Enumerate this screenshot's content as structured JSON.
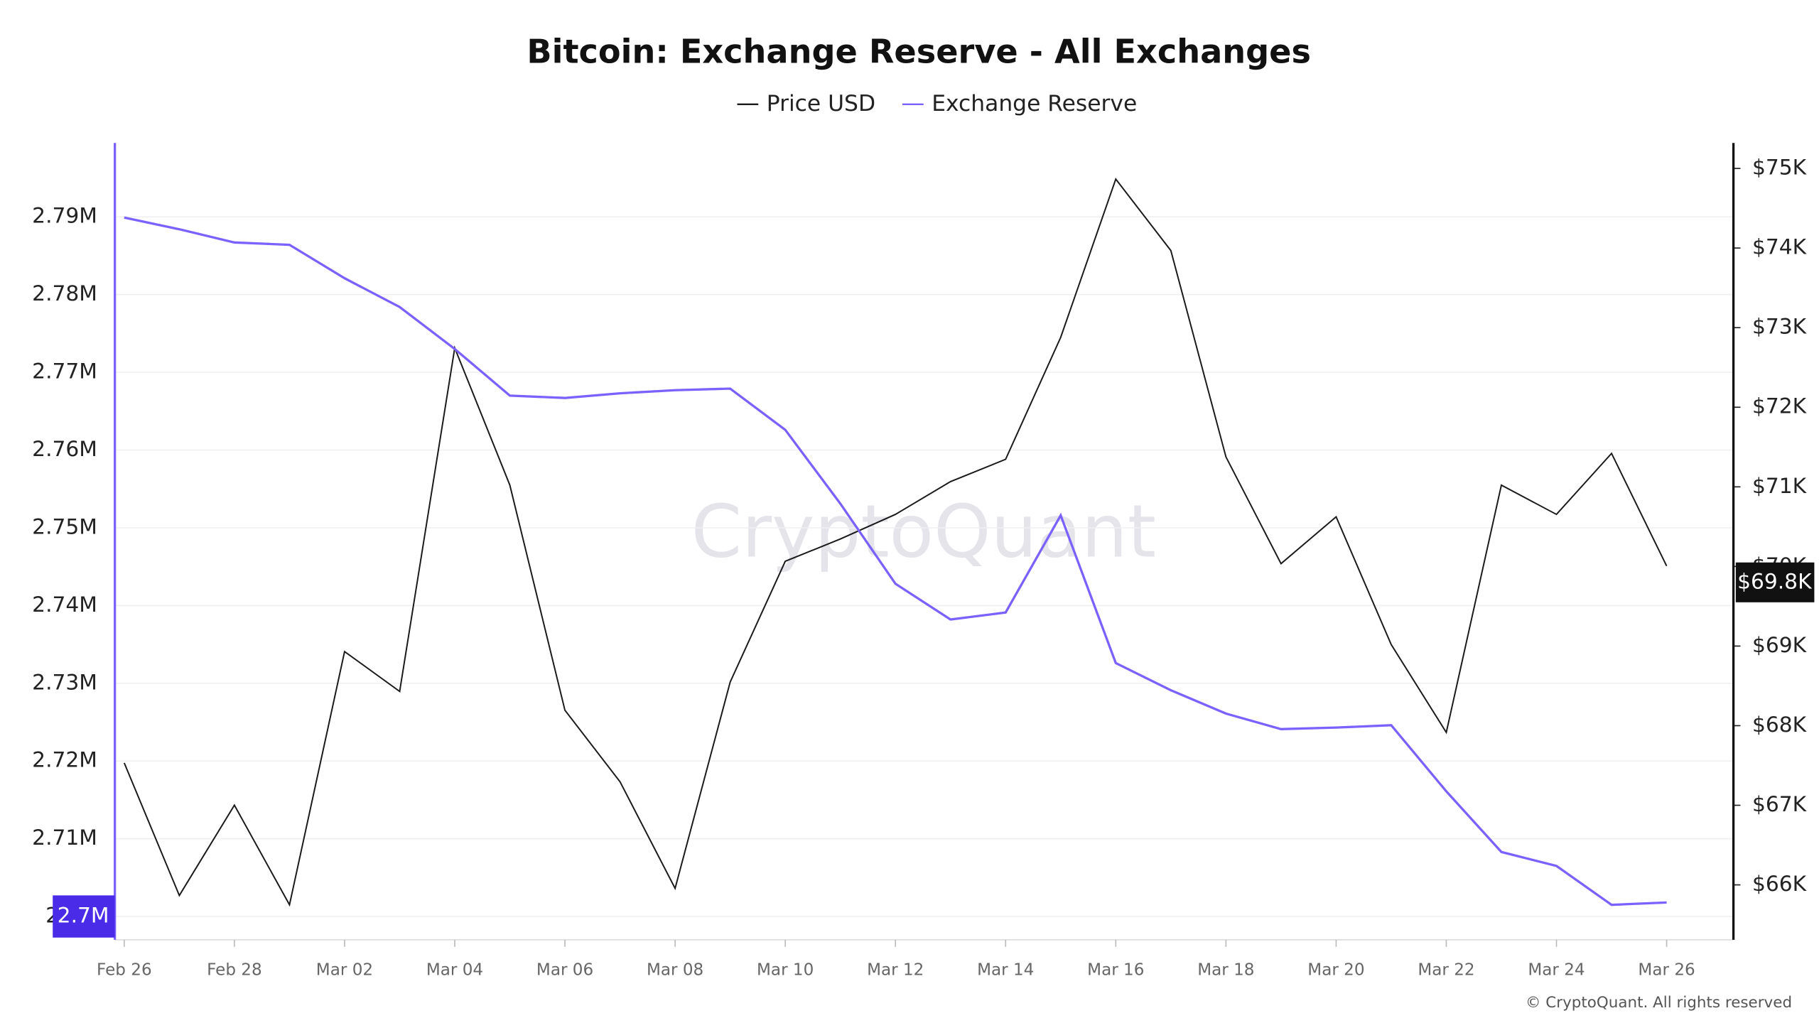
{
  "chart_data": {
    "type": "line",
    "title": "Bitcoin: Exchange Reserve - All Exchanges",
    "categories": [
      "Feb 26",
      null,
      "Feb 28",
      null,
      "Mar 02",
      null,
      "Mar 04",
      null,
      "Mar 06",
      null,
      "Mar 08",
      null,
      "Mar 10",
      null,
      "Mar 12",
      null,
      "Mar 14",
      null,
      "Mar 16",
      null,
      "Mar 18",
      null,
      "Mar 20",
      null,
      "Mar 22",
      null,
      "Mar 24",
      null,
      "Mar 26"
    ],
    "series": [
      {
        "name": "Price USD",
        "color": "#1a1a1a",
        "axis": "y2",
        "values": [
          67532,
          65867,
          67001,
          65750,
          68931,
          68430,
          72745,
          71022,
          68194,
          67296,
          65956,
          68548,
          70065,
          70345,
          70654,
          71066,
          71346,
          72878,
          74866,
          73968,
          71376,
          70035,
          70624,
          69019,
          67915,
          71022,
          70654,
          71420,
          70006
        ]
      },
      {
        "name": "Exchange Reserve",
        "color": "#7b61ff",
        "values": [
          2.7899,
          2.7884,
          2.7867,
          2.7864,
          2.7821,
          2.7784,
          2.773,
          2.767,
          2.7667,
          2.7673,
          2.7677,
          2.7679,
          2.7626,
          2.7531,
          2.7428,
          2.7382,
          2.7391,
          2.7516,
          2.7326,
          2.7291,
          2.7261,
          2.7241,
          2.7243,
          2.7246,
          2.7161,
          2.7083,
          2.7065,
          2.7015,
          2.7018
        ]
      }
    ],
    "ylim": [
      2.697,
      2.7995
    ],
    "yticks": [
      {
        "value": 2.7,
        "label": "2.7M"
      },
      {
        "value": 2.71,
        "label": "2.71M"
      },
      {
        "value": 2.72,
        "label": "2.72M"
      },
      {
        "value": 2.73,
        "label": "2.73M"
      },
      {
        "value": 2.74,
        "label": "2.74M"
      },
      {
        "value": 2.75,
        "label": "2.75M"
      },
      {
        "value": 2.76,
        "label": "2.76M"
      },
      {
        "value": 2.77,
        "label": "2.77M"
      },
      {
        "value": 2.78,
        "label": "2.78M"
      },
      {
        "value": 2.79,
        "label": "2.79M"
      }
    ],
    "y2lim": [
      65310,
      75320
    ],
    "y2ticks": [
      {
        "value": 66000,
        "label": "$66K"
      },
      {
        "value": 67000,
        "label": "$67K"
      },
      {
        "value": 68000,
        "label": "$68K"
      },
      {
        "value": 69000,
        "label": "$69K"
      },
      {
        "value": 70000,
        "label": "$70K"
      },
      {
        "value": 71000,
        "label": "$71K"
      },
      {
        "value": 72000,
        "label": "$72K"
      },
      {
        "value": 73000,
        "label": "$73K"
      },
      {
        "value": 74000,
        "label": "$74K"
      },
      {
        "value": 75000,
        "label": "$75K"
      }
    ],
    "grid": true,
    "legend": "top",
    "y_badge": {
      "value": 2.7,
      "label": "2.7M"
    },
    "y2_badge": {
      "value": 69800,
      "label": "$69.8K"
    },
    "watermark": "CryptoQuant",
    "footer": "© CryptoQuant. All rights reserved"
  }
}
